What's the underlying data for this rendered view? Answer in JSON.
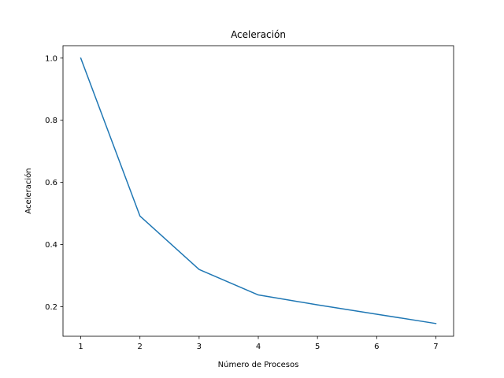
{
  "chart_data": {
    "type": "line",
    "title": "Aceleración",
    "xlabel": "Número de Procesos",
    "ylabel": "Aceleración",
    "xlim": [
      0.7,
      7.3
    ],
    "ylim": [
      0.105,
      1.04
    ],
    "xticks": [
      1,
      2,
      3,
      4,
      5,
      6,
      7
    ],
    "yticks": [
      0.2,
      0.4,
      0.6,
      0.8,
      1.0
    ],
    "ytick_labels": [
      "0.2",
      "0.4",
      "0.6",
      "0.8",
      "1.0"
    ],
    "grid": false,
    "colors": {
      "line": "#1f77b4",
      "axes": "#000000"
    },
    "series": [
      {
        "x": [
          1,
          2,
          3,
          4,
          5,
          6,
          7
        ],
        "y": [
          1.0,
          0.492,
          0.32,
          0.238,
          0.206,
          0.176,
          0.146
        ]
      }
    ]
  }
}
